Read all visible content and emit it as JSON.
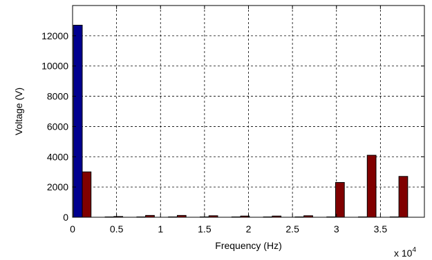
{
  "chart_data": {
    "type": "bar",
    "title": "",
    "xlabel": "Frequency (Hz)",
    "ylabel": "Voltage (V)",
    "xlim": [
      0,
      40000
    ],
    "ylim": [
      0,
      14000
    ],
    "x_scale_note": "x 10",
    "x_scale_exponent": "4",
    "xticks": [
      {
        "value": 0,
        "label": "0"
      },
      {
        "value": 5000,
        "label": "0.5"
      },
      {
        "value": 10000,
        "label": "1"
      },
      {
        "value": 15000,
        "label": "1.5"
      },
      {
        "value": 20000,
        "label": "2"
      },
      {
        "value": 25000,
        "label": "2.5"
      },
      {
        "value": 30000,
        "label": "3"
      },
      {
        "value": 35000,
        "label": "3.5"
      }
    ],
    "yticks": [
      {
        "value": 0,
        "label": "0"
      },
      {
        "value": 2000,
        "label": "2000"
      },
      {
        "value": 4000,
        "label": "4000"
      },
      {
        "value": 6000,
        "label": "6000"
      },
      {
        "value": 8000,
        "label": "8000"
      },
      {
        "value": 10000,
        "label": "10000"
      },
      {
        "value": 12000,
        "label": "12000"
      }
    ],
    "grid": true,
    "bar_width": 1000,
    "series": [
      {
        "color": "#00008f",
        "x": [
          600,
          4200,
          7800,
          11400,
          15000,
          18600,
          22200,
          25800,
          29400,
          33000,
          36600
        ],
        "values": [
          12700,
          0,
          0,
          0,
          0,
          0,
          0,
          0,
          0,
          0,
          0
        ]
      },
      {
        "color": "#800000",
        "x": [
          1600,
          5200,
          8800,
          12400,
          16000,
          19600,
          23200,
          26800,
          30400,
          34000,
          37600
        ],
        "values": [
          3000,
          50,
          120,
          120,
          100,
          80,
          80,
          100,
          2300,
          4100,
          2700
        ]
      }
    ]
  }
}
